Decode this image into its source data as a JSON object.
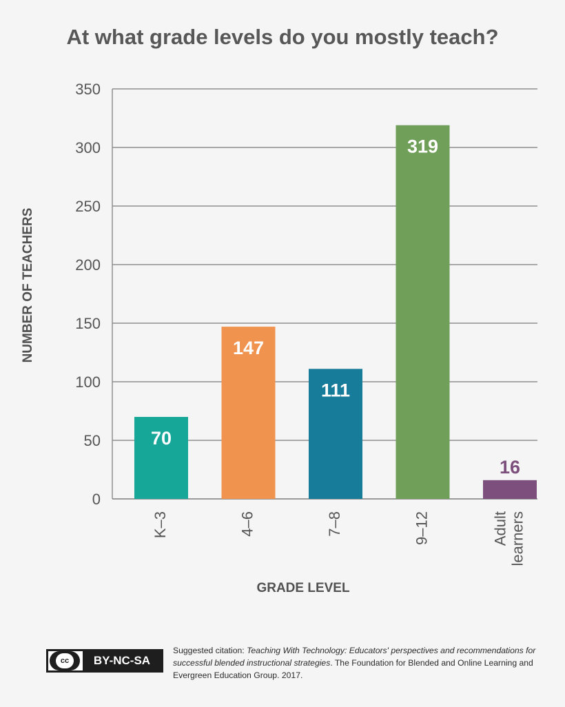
{
  "chart_data": {
    "type": "bar",
    "title": "At what grade levels do you mostly teach?",
    "xlabel": "GRADE LEVEL",
    "ylabel": "NUMBER OF TEACHERS",
    "categories": [
      "K–3",
      "4–6",
      "7–8",
      "9–12",
      "Adult learners"
    ],
    "category_lines": [
      [
        "K–3"
      ],
      [
        "4–6"
      ],
      [
        "7–8"
      ],
      [
        "9–12"
      ],
      [
        "Adult",
        "learners"
      ]
    ],
    "values": [
      70,
      147,
      111,
      319,
      16
    ],
    "data_labels": [
      "70",
      "147",
      "111",
      "319",
      "16"
    ],
    "colors": [
      "#17a799",
      "#f0934f",
      "#177b9a",
      "#6f9f58",
      "#7c4f7c"
    ],
    "label_outside_color": "#7c4f7c",
    "ylim": [
      0,
      350
    ],
    "yticks": [
      0,
      50,
      100,
      150,
      200,
      250,
      300,
      350
    ],
    "grid": true,
    "legend": "none"
  },
  "footer": {
    "license": "BY-NC-SA",
    "license_icon": "cc",
    "citation_prefix": "Suggested citation: ",
    "citation_title": "Teaching With Technology: Educators' perspectives and recommendations for successful blended instructional strategies",
    "citation_rest": ". The Foundation for Blended and Online Learning and Evergreen Education Group. 2017."
  }
}
